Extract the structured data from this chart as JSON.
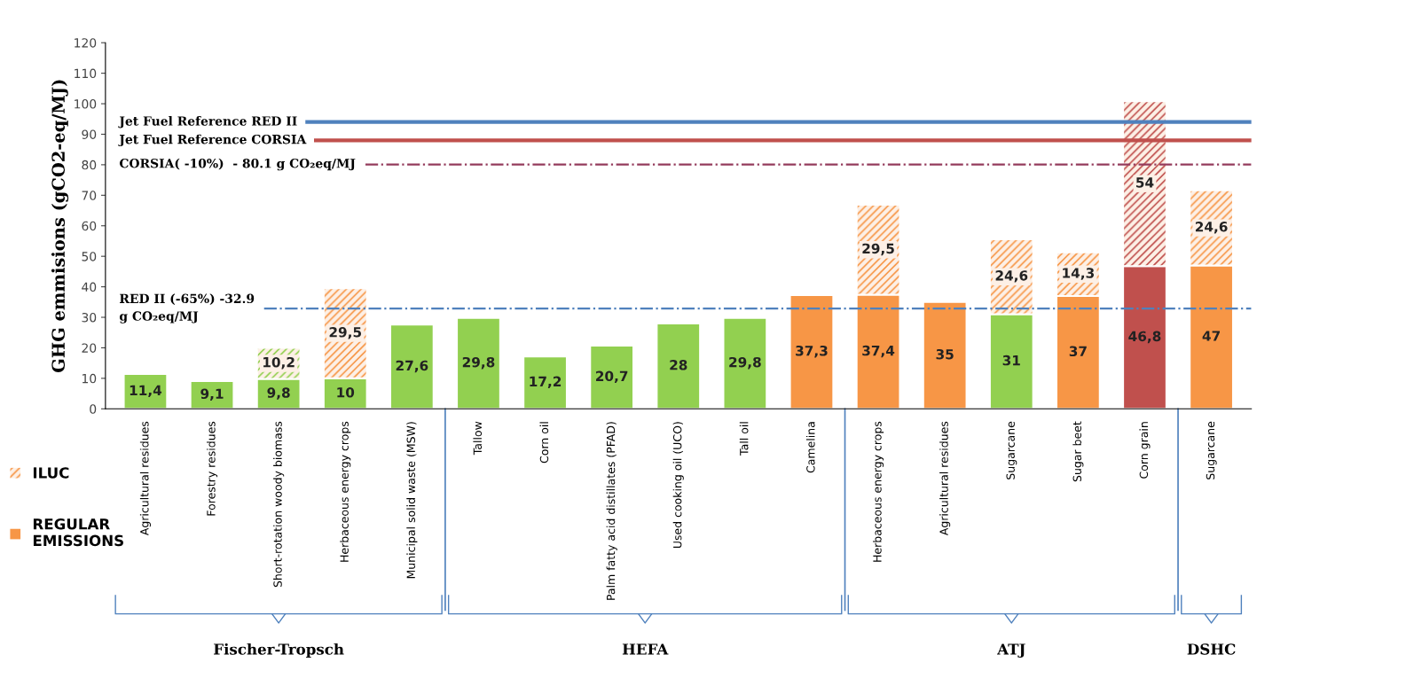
{
  "chart_data": {
    "type": "bar",
    "stacked": true,
    "ylabel": "GHG emmisions (gCO2-eq/MJ)",
    "categories": [
      "Agricultural residues",
      "Forestry residues",
      "Short-rotation woody biomass",
      "Herbaceous energy crops",
      "Municipal solid waste (MSW)",
      "Tallow",
      "Corn oil",
      "Palm fatty acid distillates (PFAD)",
      "Used cooking oil (UCO)",
      "Tall oil",
      "Camelina",
      "Herbaceous energy crops",
      "Agricultural residues",
      "Sugarcane",
      "Sugar beet",
      "Corn grain",
      "Sugarcane"
    ],
    "series": [
      {
        "name": "REGULAR\nEMISSIONS",
        "color": "#f79646",
        "colors": [
          "#92d050",
          "#92d050",
          "#92d050",
          "#92d050",
          "#92d050",
          "#92d050",
          "#92d050",
          "#92d050",
          "#92d050",
          "#92d050",
          "#f79646",
          "#f79646",
          "#f79646",
          "#92d050",
          "#f79646",
          "#c0504d",
          "#f79646"
        ],
        "values": [
          11.4,
          9.1,
          9.8,
          10,
          27.6,
          29.8,
          17.2,
          20.7,
          28,
          29.8,
          37.3,
          37.4,
          35,
          31,
          37,
          46.8,
          47
        ],
        "value_labels": [
          "11,4",
          "9,1",
          "9,8",
          "10",
          "27,6",
          "29,8",
          "17,2",
          "20,7",
          "28",
          "29,8",
          "37,3",
          "37,4",
          "35",
          "31",
          "37",
          "46,8",
          "47"
        ]
      },
      {
        "name": "ILUC",
        "color": "#f79646",
        "colors": [
          null,
          null,
          "#92d050",
          "#f79646",
          null,
          null,
          null,
          null,
          null,
          null,
          null,
          "#f79646",
          null,
          "#f79646",
          "#f79646",
          "#c0504d",
          "#f79646"
        ],
        "values": [
          null,
          null,
          10.2,
          29.5,
          null,
          null,
          null,
          null,
          null,
          null,
          null,
          29.5,
          null,
          24.6,
          14.3,
          54,
          24.6
        ],
        "value_labels": [
          null,
          null,
          "10,2",
          "29,5",
          null,
          null,
          null,
          null,
          null,
          null,
          null,
          "29,5",
          null,
          "24,6",
          "14,3",
          "54",
          "24,6"
        ]
      }
    ],
    "ylim": [
      0,
      120
    ],
    "yticks": [
      0,
      10,
      20,
      30,
      40,
      50,
      60,
      70,
      80,
      90,
      100,
      110,
      120
    ],
    "ref_lines": [
      {
        "axis": "y",
        "value": 94,
        "label": "Jet Fuel Reference RED II",
        "color": "#4f81bd",
        "line_style": "solid"
      },
      {
        "axis": "y",
        "value": 88,
        "label": "Jet Fuel Reference CORSIA",
        "color": "#c0504d",
        "line_style": "solid"
      },
      {
        "axis": "y",
        "value": 80.1,
        "label": "CORSIA( -10%)  - 80.1 g CO₂eq/MJ",
        "color": "#943b5c",
        "line_style": "dashed"
      },
      {
        "axis": "y",
        "value": 32.9,
        "label": "RED II (-65%) -32.9\ng CO₂eq/MJ",
        "color": "#4f81bd",
        "line_style": "dashed"
      }
    ],
    "annotations": [
      "Fischer-Tropsch",
      "HEFA",
      "ATJ",
      "DSHC"
    ],
    "legend": "left",
    "grid": false
  }
}
